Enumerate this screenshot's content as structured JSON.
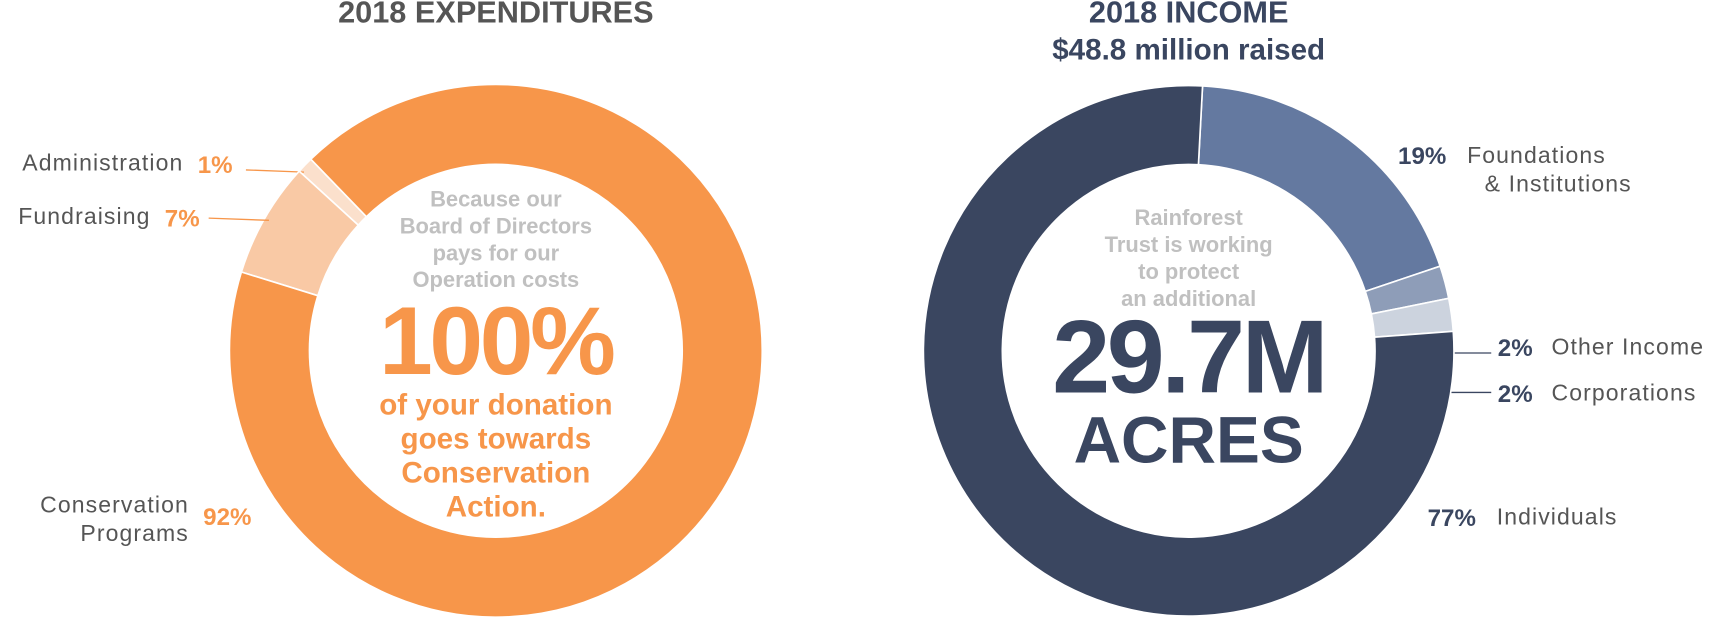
{
  "chart_data": [
    {
      "type": "pie",
      "title": "2018 EXPENDITURES",
      "categories": [
        "Administration",
        "Fundraising",
        "Conservation\nPrograms"
      ],
      "values": [
        1,
        7,
        92
      ],
      "value_labels": [
        "1%",
        "7%",
        "92%"
      ],
      "colors": [
        "#fbe0cc",
        "#f9c9a5",
        "#f7964a"
      ],
      "center_note": "Because our\nBoard of Directors\npays for our\nOperation costs",
      "center_value": "100%",
      "center_caption": "of your donation\ngoes towards\nConservation\nAction."
    },
    {
      "type": "pie",
      "title": "2018 INCOME",
      "subtitle": "$48.8 million raised",
      "categories": [
        "Foundations\n& Institutions",
        "Other Income",
        "Corporations",
        "Individuals"
      ],
      "values": [
        19,
        2,
        2,
        77
      ],
      "value_labels": [
        "19%",
        "2%",
        "2%",
        "77%"
      ],
      "colors": [
        "#6479a0",
        "#8e9db8",
        "#ccd3de",
        "#3a4660"
      ],
      "center_note": "Rainforest\nTrust is working\nto protect\nan additional",
      "center_value": "29.7M",
      "center_caption": "ACRES"
    }
  ]
}
